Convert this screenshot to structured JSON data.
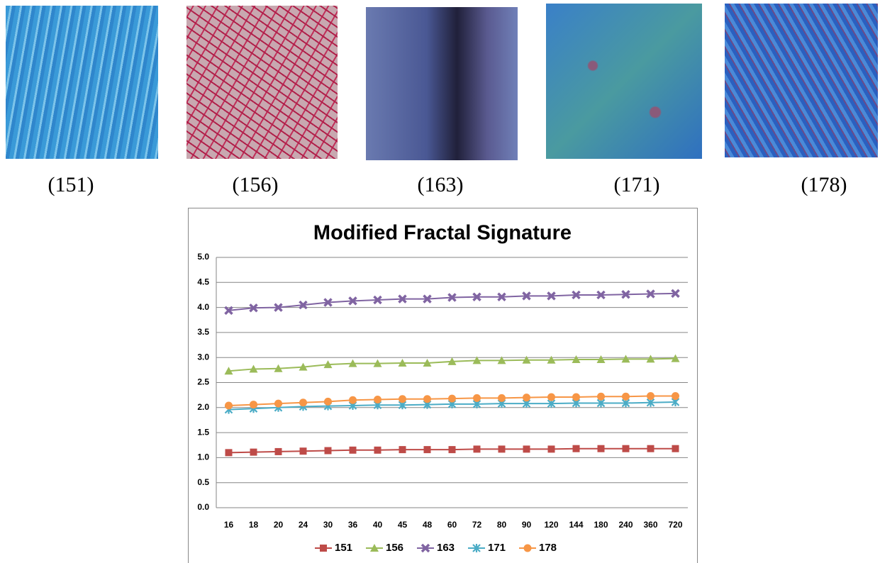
{
  "panels": [
    {
      "label": "(151)"
    },
    {
      "label": "(156)"
    },
    {
      "label": "(163)"
    },
    {
      "label": "(171)"
    },
    {
      "label": "(178)"
    }
  ],
  "chart_data": {
    "type": "line",
    "title": "Modified Fractal Signature",
    "categories": [
      "16",
      "18",
      "20",
      "24",
      "30",
      "36",
      "40",
      "45",
      "48",
      "60",
      "72",
      "80",
      "90",
      "120",
      "144",
      "180",
      "240",
      "360",
      "720"
    ],
    "series": [
      {
        "name": "151",
        "color": "#be4b48",
        "marker": "square",
        "values": [
          1.1,
          1.11,
          1.12,
          1.13,
          1.14,
          1.15,
          1.15,
          1.16,
          1.16,
          1.16,
          1.17,
          1.17,
          1.17,
          1.17,
          1.18,
          1.18,
          1.18,
          1.18,
          1.18
        ]
      },
      {
        "name": "156",
        "color": "#9bbb59",
        "marker": "triangle",
        "values": [
          2.73,
          2.77,
          2.78,
          2.81,
          2.86,
          2.88,
          2.88,
          2.89,
          2.89,
          2.92,
          2.94,
          2.94,
          2.95,
          2.95,
          2.96,
          2.96,
          2.97,
          2.97,
          2.98
        ]
      },
      {
        "name": "163",
        "color": "#8064a2",
        "marker": "star",
        "values": [
          3.94,
          3.99,
          4.0,
          4.05,
          4.1,
          4.13,
          4.15,
          4.17,
          4.17,
          4.2,
          4.21,
          4.21,
          4.23,
          4.23,
          4.25,
          4.25,
          4.26,
          4.27,
          4.28
        ]
      },
      {
        "name": "171",
        "color": "#4bacc6",
        "marker": "asterisk",
        "values": [
          1.96,
          1.98,
          2.0,
          2.02,
          2.03,
          2.04,
          2.05,
          2.05,
          2.06,
          2.07,
          2.07,
          2.08,
          2.08,
          2.08,
          2.09,
          2.09,
          2.09,
          2.1,
          2.11
        ]
      },
      {
        "name": "178",
        "color": "#f79646",
        "marker": "circle",
        "values": [
          2.04,
          2.06,
          2.08,
          2.1,
          2.12,
          2.15,
          2.16,
          2.17,
          2.17,
          2.18,
          2.19,
          2.19,
          2.2,
          2.21,
          2.21,
          2.22,
          2.22,
          2.23,
          2.23
        ]
      }
    ],
    "ylim": [
      0,
      5
    ],
    "yticks": [
      {
        "value": 0,
        "label": "0.0"
      },
      0.5,
      {
        "value": 1,
        "label": "1.0"
      },
      1.5,
      {
        "value": 2,
        "label": "2.0"
      },
      2.5,
      {
        "value": 3,
        "label": "3.0"
      },
      3.5,
      {
        "value": 4,
        "label": "4.0"
      },
      4.5,
      {
        "value": 5,
        "label": "5.0"
      }
    ],
    "grid": true,
    "legend": "bottom"
  }
}
